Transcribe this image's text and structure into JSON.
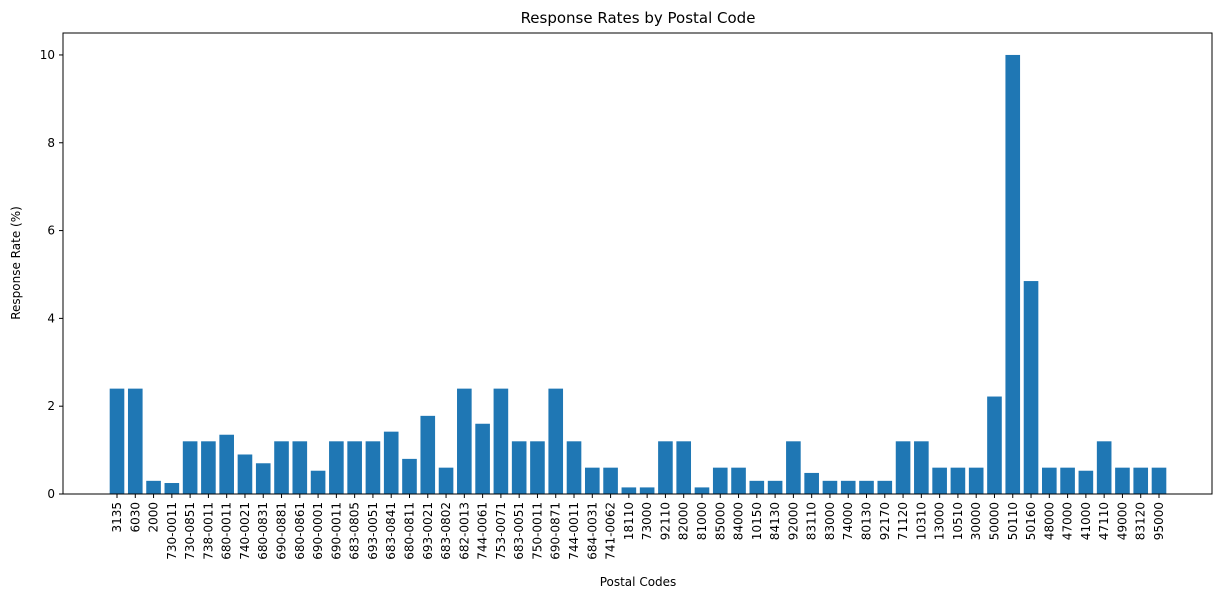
{
  "chart_data": {
    "type": "bar",
    "title": "Response Rates by Postal Code",
    "xlabel": "Postal Codes",
    "ylabel": "Response Rate (%)",
    "ylim": [
      0,
      10.5
    ],
    "yticks": [
      0,
      2,
      4,
      6,
      8,
      10
    ],
    "grid": false,
    "bar_color": "#1f77b4",
    "categories": [
      "3135",
      "6030",
      "2000",
      "730-0011",
      "730-0851",
      "738-0011",
      "680-0011",
      "740-0021",
      "680-0831",
      "690-0881",
      "680-0861",
      "690-0001",
      "690-0011",
      "683-0805",
      "693-0051",
      "683-0841",
      "680-0811",
      "693-0021",
      "683-0802",
      "682-0013",
      "744-0061",
      "753-0071",
      "683-0051",
      "750-0011",
      "690-0871",
      "744-0011",
      "684-0031",
      "741-0062",
      "18110",
      "73000",
      "92110",
      "82000",
      "81000",
      "85000",
      "84000",
      "10150",
      "84130",
      "92000",
      "83110",
      "83000",
      "74000",
      "80130",
      "92170",
      "71120",
      "10310",
      "13000",
      "10510",
      "30000",
      "50000",
      "50110",
      "50160",
      "48000",
      "47000",
      "41000",
      "47110",
      "49000",
      "83120",
      "95000"
    ],
    "values": [
      2.4,
      2.4,
      0.3,
      0.25,
      1.2,
      1.2,
      1.35,
      0.9,
      0.7,
      1.2,
      1.2,
      0.53,
      1.2,
      1.2,
      1.2,
      1.42,
      0.8,
      1.78,
      0.6,
      2.4,
      1.6,
      2.4,
      1.2,
      1.2,
      2.4,
      1.2,
      0.6,
      0.6,
      0.15,
      0.15,
      1.2,
      1.2,
      0.15,
      0.6,
      0.6,
      0.3,
      0.3,
      1.2,
      0.48,
      0.3,
      0.3,
      0.3,
      0.3,
      1.2,
      1.2,
      0.6,
      0.6,
      0.6,
      2.22,
      10.0,
      4.85,
      0.6,
      0.6,
      0.53,
      1.2,
      0.6,
      0.6,
      0.6
    ]
  }
}
